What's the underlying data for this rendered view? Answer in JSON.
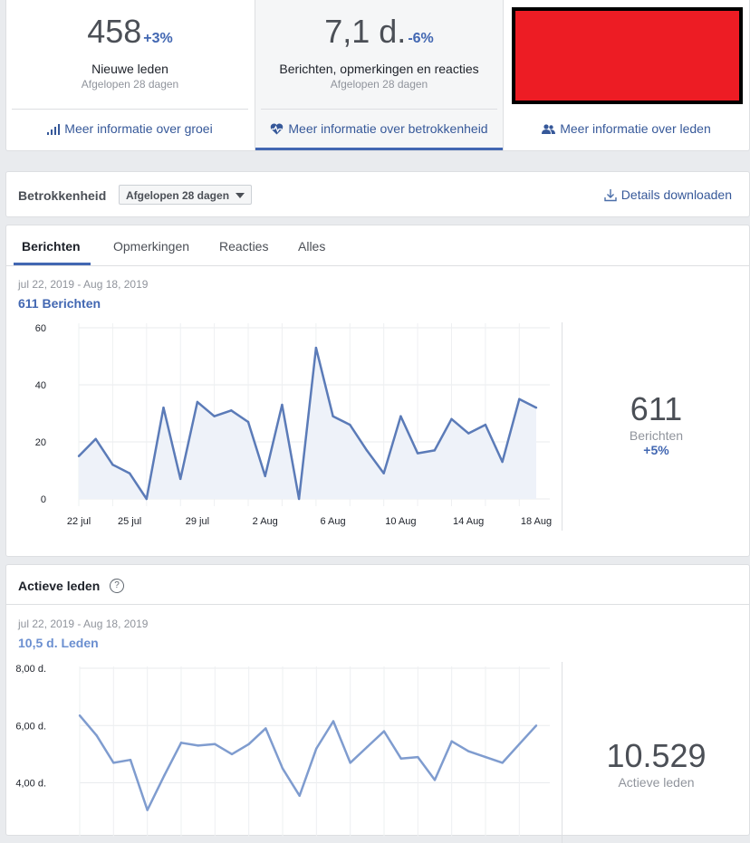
{
  "top_stats": [
    {
      "value": "458",
      "change": "+3%",
      "label": "Nieuwe leden",
      "sub": "Afgelopen 28 dagen",
      "link": "Meer informatie over groei"
    },
    {
      "value": "7,1 d.",
      "change": "-6%",
      "label": "Berichten, opmerkingen en reacties",
      "sub": "Afgelopen 28 dagen",
      "link": "Meer informatie over betrokkenheid"
    },
    {
      "link": "Meer informatie over leden"
    }
  ],
  "engagement": {
    "title": "Betrokkenheid",
    "period": "Afgelopen 28 dagen",
    "download": "Details downloaden"
  },
  "tabs": [
    "Berichten",
    "Opmerkingen",
    "Reacties",
    "Alles"
  ],
  "posts": {
    "range": "jul 22, 2019 - Aug 18, 2019",
    "total": "611  Berichten",
    "big_value": "611",
    "big_caption": "Berichten",
    "big_change": "+5%"
  },
  "members": {
    "title": "Actieve leden",
    "range": "jul 22, 2019 - Aug 18, 2019",
    "total": "10,5 d.  Leden",
    "big_value": "10.529",
    "big_caption": "Actieve leden"
  },
  "chart_data": [
    {
      "type": "area",
      "x": [
        "22 jul",
        "23 jul",
        "24 jul",
        "25 jul",
        "26 jul",
        "27 jul",
        "28 jul",
        "29 jul",
        "30 jul",
        "31 jul",
        "1 Aug",
        "2 Aug",
        "3 Aug",
        "4 Aug",
        "5 Aug",
        "6 Aug",
        "7 Aug",
        "8 Aug",
        "9 Aug",
        "10 Aug",
        "11 Aug",
        "12 Aug",
        "13 Aug",
        "14 Aug",
        "15 Aug",
        "16 Aug",
        "17 Aug",
        "18 Aug"
      ],
      "values": [
        15,
        21,
        12,
        9,
        0,
        32,
        7,
        34,
        29,
        31,
        27,
        8,
        33,
        0,
        53,
        29,
        26,
        17,
        9,
        29,
        16,
        17,
        28,
        23,
        26,
        13,
        35,
        32
      ],
      "yticks": [
        0,
        20,
        40,
        60
      ],
      "ylim": [
        0,
        60
      ],
      "xtick_labels": [
        "22 jul",
        "25 jul",
        "29 jul",
        "2 Aug",
        "6 Aug",
        "10 Aug",
        "14 Aug",
        "18 Aug"
      ],
      "grid": true,
      "color": "#5b7bb8"
    },
    {
      "type": "line",
      "x": [
        "22 jul",
        "23 jul",
        "24 jul",
        "25 jul",
        "26 jul",
        "27 jul",
        "28 jul",
        "29 jul",
        "30 jul",
        "31 jul",
        "1 Aug",
        "2 Aug",
        "3 Aug",
        "4 Aug",
        "5 Aug",
        "6 Aug",
        "7 Aug",
        "8 Aug",
        "9 Aug",
        "10 Aug",
        "11 Aug",
        "12 Aug",
        "13 Aug",
        "14 Aug",
        "15 Aug",
        "16 Aug",
        "17 Aug",
        "18 Aug"
      ],
      "values": [
        6.35,
        5.65,
        4.7,
        4.8,
        3.05,
        4.25,
        5.4,
        5.3,
        5.35,
        5.0,
        5.35,
        5.9,
        4.5,
        3.55,
        5.2,
        6.15,
        4.7,
        5.25,
        5.8,
        4.85,
        4.9,
        4.1,
        5.45,
        5.1,
        4.9,
        4.7,
        5.35,
        6.0
      ],
      "yticks": [
        4.0,
        6.0,
        8.0
      ],
      "ytick_labels": [
        "4,00 d.",
        "6,00 d.",
        "8,00 d."
      ],
      "ylim": [
        2.5,
        8.0
      ],
      "grid": true,
      "color": "#7f9ccf"
    }
  ]
}
